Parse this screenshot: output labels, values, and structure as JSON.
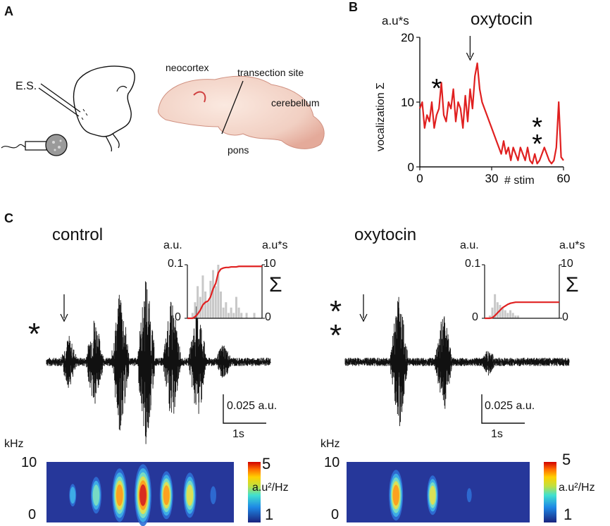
{
  "panels": {
    "a": "A",
    "b": "B",
    "c": "C"
  },
  "panel_a": {
    "electrode_label": "E.S.",
    "brain_labels": {
      "neocortex": "neocortex",
      "transection": "transection site",
      "cerebellum": "cerebellum",
      "pons": "pons"
    }
  },
  "chart_data": [
    {
      "type": "line",
      "panel": "B",
      "title": "oxytocin",
      "ylabel": "vocalization Σ",
      "yunit": "a.u*s",
      "xlabel": "# stim",
      "xlim": [
        0,
        60
      ],
      "ylim": [
        0,
        20
      ],
      "xticks": [
        "0",
        "30",
        "60"
      ],
      "yticks": [
        "0",
        "10",
        "20"
      ],
      "arrow_at_stim": 21,
      "annotations": [
        {
          "label": "*",
          "at_stim": 7
        },
        {
          "label": "**",
          "at_stim": 49
        }
      ],
      "series": [
        {
          "name": "vocalization",
          "color": "#e02020",
          "x": [
            0,
            1,
            2,
            3,
            4,
            5,
            6,
            7,
            8,
            9,
            10,
            11,
            12,
            13,
            14,
            15,
            16,
            17,
            18,
            19,
            20,
            21,
            22,
            23,
            24,
            25,
            26,
            27,
            28,
            29,
            30,
            31,
            32,
            33,
            34,
            35,
            36,
            37,
            38,
            39,
            40,
            41,
            42,
            43,
            44,
            45,
            46,
            47,
            48,
            49,
            50,
            51,
            52,
            53,
            54,
            55,
            56,
            57,
            58,
            59,
            60
          ],
          "y": [
            9,
            10,
            6,
            8,
            7,
            10,
            6,
            8,
            9,
            13,
            8,
            7,
            10,
            9,
            12,
            7,
            10,
            9,
            6,
            11,
            7,
            12,
            9,
            14,
            16,
            12,
            10,
            9,
            8,
            7,
            6,
            5,
            4,
            3,
            2,
            4,
            2,
            3,
            1,
            3,
            2,
            1,
            3,
            2,
            1,
            3,
            1,
            0.5,
            2,
            0.5,
            1,
            2,
            3,
            2,
            1,
            0.5,
            1,
            3,
            10,
            1.5,
            1
          ]
        }
      ]
    },
    {
      "type": "area",
      "panel": "C-control-inset",
      "ylabel_left": "a.u.",
      "ylabel_right": "a.u*s",
      "sigma": "Σ",
      "left_ylim": [
        0,
        0.1
      ],
      "right_ylim": [
        0,
        10
      ],
      "left_ticks": [
        "0",
        "0.1"
      ],
      "right_ticks": [
        "0",
        "10"
      ],
      "series": [
        {
          "name": "cumulative",
          "color": "#e02020",
          "y": [
            0,
            0,
            0,
            0.3,
            0.8,
            1.5,
            2.5,
            3,
            3.2,
            4,
            5.5,
            6.5,
            8.5,
            9.2,
            9.4,
            9.5,
            9.5,
            9.6,
            9.6,
            9.6,
            9.7,
            9.7,
            9.7,
            9.7,
            9.7,
            9.7,
            9.7,
            9.7,
            9.7,
            9.7
          ]
        },
        {
          "name": "instantaneous",
          "color": "#c8c8c8",
          "y": [
            0,
            0,
            0.01,
            0.03,
            0.06,
            0.04,
            0.08,
            0.05,
            0.03,
            0.07,
            0.09,
            0.06,
            0.1,
            0.05,
            0.02,
            0.03,
            0.01,
            0.02,
            0.01,
            0.04,
            0.02,
            0.01,
            0,
            0.01,
            0,
            0,
            0.01,
            0,
            0,
            0
          ]
        }
      ]
    },
    {
      "type": "area",
      "panel": "C-oxytocin-inset",
      "ylabel_left": "a.u.",
      "ylabel_right": "a.u*s",
      "sigma": "Σ",
      "left_ylim": [
        0,
        0.1
      ],
      "right_ylim": [
        0,
        10
      ],
      "left_ticks": [
        "0",
        "0.1"
      ],
      "right_ticks": [
        "0",
        "10"
      ],
      "series": [
        {
          "name": "cumulative",
          "color": "#e02020",
          "y": [
            0,
            0,
            0,
            0.1,
            0.5,
            1,
            1.5,
            2,
            2.3,
            2.6,
            2.8,
            2.9,
            3,
            3,
            3,
            3,
            3,
            3,
            3,
            3,
            3,
            3,
            3,
            3,
            3,
            3,
            3,
            3,
            3,
            3
          ]
        },
        {
          "name": "instantaneous",
          "color": "#c8c8c8",
          "y": [
            0,
            0,
            0.005,
            0.02,
            0.045,
            0.03,
            0.025,
            0.02,
            0.015,
            0.01,
            0.015,
            0.01,
            0.005,
            0.005,
            0,
            0,
            0,
            0,
            0,
            0,
            0,
            0,
            0,
            0,
            0,
            0,
            0,
            0,
            0,
            0
          ]
        }
      ]
    }
  ],
  "panel_c": {
    "control": {
      "title": "control",
      "stars": "*",
      "scale_amp": "0.025 a.u.",
      "scale_time": "1s",
      "spectro_yunit": "kHz",
      "spectro_ytop": "10",
      "spectro_ybottom": "0",
      "colorbar_max": "5",
      "colorbar_min": "1",
      "colorbar_unit": "a.u²/Hz",
      "bursts": [
        0.3,
        0.55,
        0.85,
        1.0,
        0.75,
        0.7,
        0.22
      ]
    },
    "oxytocin": {
      "title": "oxytocin",
      "stars": "**",
      "scale_amp": "0.025 a.u.",
      "scale_time": "1s",
      "spectro_yunit": "kHz",
      "spectro_ytop": "10",
      "spectro_ybottom": "0",
      "colorbar_max": "5",
      "colorbar_min": "1",
      "colorbar_unit": "a.u²/Hz",
      "bursts": [
        0.8,
        0.6,
        0.15
      ]
    }
  }
}
